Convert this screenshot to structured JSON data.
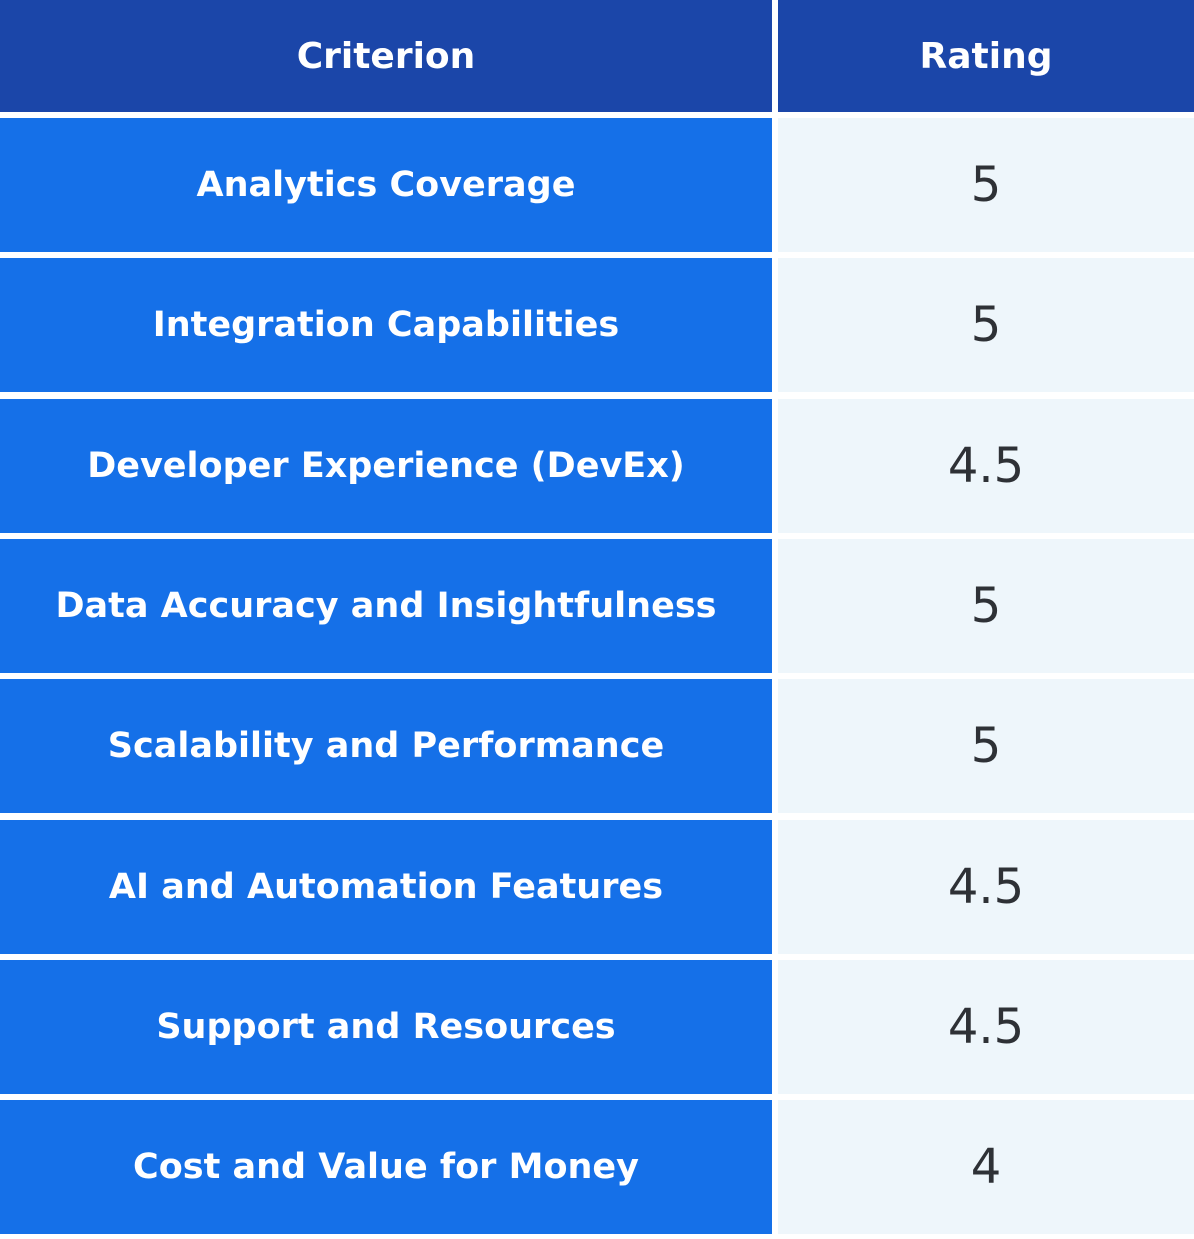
{
  "table": {
    "headers": [
      "Criterion",
      "Rating"
    ],
    "rows": [
      [
        "Analytics Coverage",
        5
      ],
      [
        "Integration Capabilities",
        5
      ],
      [
        "Developer Experience (DevEx)",
        4.5
      ],
      [
        "Data Accuracy and Insightfulness",
        5
      ],
      [
        "Scalability and Performance",
        5
      ],
      [
        "AI and Automation Features",
        4.5
      ],
      [
        "Support and Resources",
        4.5
      ],
      [
        "Cost and Value for Money",
        4
      ]
    ]
  }
}
